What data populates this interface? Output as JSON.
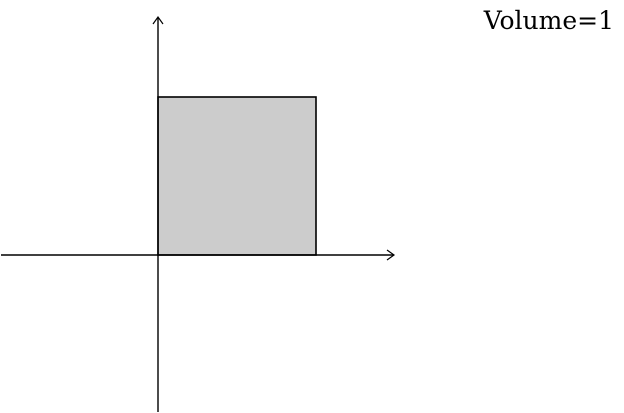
{
  "diagram": {
    "volume_label": "Volume=1",
    "square_fill": "#cccccc",
    "stroke_color": "#000000"
  }
}
